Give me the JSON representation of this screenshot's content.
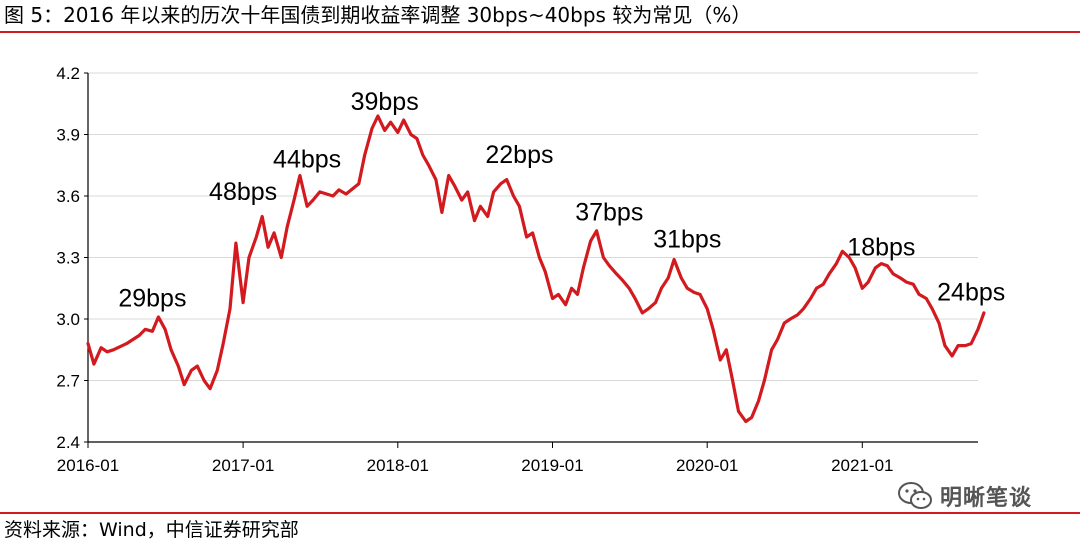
{
  "figure": {
    "title": "图 5：2016 年以来的历次十年国债到期收益率调整 30bps~40bps 较为常见（%）",
    "source": "资料来源：Wind，中信证券研究部",
    "watermark": "明晰笔谈",
    "watermark_icon": "wechat-icon"
  },
  "colors": {
    "line": "#d21a1f",
    "rule": "#d21a1f",
    "grid": "#d9d9d9",
    "axis": "#000000"
  },
  "chart_data": {
    "type": "line",
    "title": "",
    "xlabel": "",
    "ylabel": "",
    "ylim": [
      2.4,
      4.2
    ],
    "yticks": [
      "2.4",
      "2.7",
      "3.0",
      "3.3",
      "3.6",
      "3.9",
      "4.2"
    ],
    "xlim": [
      "2016-01",
      "2021-10"
    ],
    "xticks": [
      "2016-01",
      "2017-01",
      "2018-01",
      "2019-01",
      "2020-01",
      "2021-01"
    ],
    "grid": "horizontal",
    "legend": "none",
    "series": [
      {
        "points": [
          [
            "2016-01",
            2.88
          ],
          [
            "2016-01-15",
            2.78
          ],
          [
            "2016-02",
            2.86
          ],
          [
            "2016-02-15",
            2.84
          ],
          [
            "2016-03",
            2.85
          ],
          [
            "2016-04",
            2.88
          ],
          [
            "2016-05",
            2.92
          ],
          [
            "2016-05-15",
            2.95
          ],
          [
            "2016-06",
            2.94
          ],
          [
            "2016-06-15",
            3.01
          ],
          [
            "2016-07",
            2.95
          ],
          [
            "2016-07-15",
            2.85
          ],
          [
            "2016-08",
            2.77
          ],
          [
            "2016-08-15",
            2.68
          ],
          [
            "2016-09",
            2.75
          ],
          [
            "2016-09-15",
            2.77
          ],
          [
            "2016-10",
            2.7
          ],
          [
            "2016-10-15",
            2.66
          ],
          [
            "2016-11",
            2.75
          ],
          [
            "2016-11-15",
            2.88
          ],
          [
            "2016-12",
            3.05
          ],
          [
            "2016-12-15",
            3.37
          ],
          [
            "2017-01",
            3.08
          ],
          [
            "2017-01-15",
            3.3
          ],
          [
            "2017-02",
            3.4
          ],
          [
            "2017-02-15",
            3.5
          ],
          [
            "2017-03",
            3.35
          ],
          [
            "2017-03-15",
            3.42
          ],
          [
            "2017-04",
            3.3
          ],
          [
            "2017-04-15",
            3.45
          ],
          [
            "2017-05",
            3.58
          ],
          [
            "2017-05-15",
            3.7
          ],
          [
            "2017-06",
            3.55
          ],
          [
            "2017-06-15",
            3.58
          ],
          [
            "2017-07",
            3.62
          ],
          [
            "2017-08",
            3.6
          ],
          [
            "2017-08-15",
            3.63
          ],
          [
            "2017-09",
            3.61
          ],
          [
            "2017-10",
            3.66
          ],
          [
            "2017-10-15",
            3.8
          ],
          [
            "2017-11",
            3.93
          ],
          [
            "2017-11-15",
            3.99
          ],
          [
            "2017-12",
            3.92
          ],
          [
            "2017-12-15",
            3.96
          ],
          [
            "2018-01",
            3.91
          ],
          [
            "2018-01-15",
            3.97
          ],
          [
            "2018-02",
            3.9
          ],
          [
            "2018-02-15",
            3.88
          ],
          [
            "2018-03",
            3.8
          ],
          [
            "2018-03-15",
            3.75
          ],
          [
            "2018-04",
            3.68
          ],
          [
            "2018-04-15",
            3.52
          ],
          [
            "2018-05",
            3.7
          ],
          [
            "2018-05-15",
            3.65
          ],
          [
            "2018-06",
            3.58
          ],
          [
            "2018-06-15",
            3.62
          ],
          [
            "2018-07",
            3.48
          ],
          [
            "2018-07-15",
            3.55
          ],
          [
            "2018-08",
            3.5
          ],
          [
            "2018-08-15",
            3.62
          ],
          [
            "2018-09",
            3.66
          ],
          [
            "2018-09-15",
            3.68
          ],
          [
            "2018-10",
            3.6
          ],
          [
            "2018-10-15",
            3.55
          ],
          [
            "2018-11",
            3.4
          ],
          [
            "2018-11-15",
            3.42
          ],
          [
            "2018-12",
            3.3
          ],
          [
            "2018-12-15",
            3.23
          ],
          [
            "2019-01",
            3.1
          ],
          [
            "2019-01-15",
            3.12
          ],
          [
            "2019-02",
            3.07
          ],
          [
            "2019-02-15",
            3.15
          ],
          [
            "2019-03",
            3.12
          ],
          [
            "2019-03-15",
            3.25
          ],
          [
            "2019-04",
            3.38
          ],
          [
            "2019-04-15",
            3.43
          ],
          [
            "2019-05",
            3.3
          ],
          [
            "2019-05-15",
            3.26
          ],
          [
            "2019-06",
            3.22
          ],
          [
            "2019-06-15",
            3.19
          ],
          [
            "2019-07",
            3.15
          ],
          [
            "2019-07-15",
            3.1
          ],
          [
            "2019-08",
            3.03
          ],
          [
            "2019-08-15",
            3.05
          ],
          [
            "2019-09",
            3.08
          ],
          [
            "2019-09-15",
            3.15
          ],
          [
            "2019-10",
            3.2
          ],
          [
            "2019-10-15",
            3.29
          ],
          [
            "2019-11",
            3.2
          ],
          [
            "2019-11-15",
            3.15
          ],
          [
            "2019-12",
            3.13
          ],
          [
            "2019-12-15",
            3.12
          ],
          [
            "2020-01",
            3.05
          ],
          [
            "2020-01-15",
            2.95
          ],
          [
            "2020-02",
            2.8
          ],
          [
            "2020-02-15",
            2.85
          ],
          [
            "2020-03",
            2.7
          ],
          [
            "2020-03-15",
            2.55
          ],
          [
            "2020-04",
            2.5
          ],
          [
            "2020-04-15",
            2.52
          ],
          [
            "2020-05",
            2.6
          ],
          [
            "2020-05-15",
            2.7
          ],
          [
            "2020-06",
            2.85
          ],
          [
            "2020-06-15",
            2.9
          ],
          [
            "2020-07",
            2.98
          ],
          [
            "2020-07-15",
            3.0
          ],
          [
            "2020-08",
            3.02
          ],
          [
            "2020-08-15",
            3.05
          ],
          [
            "2020-09",
            3.1
          ],
          [
            "2020-09-15",
            3.15
          ],
          [
            "2020-10",
            3.17
          ],
          [
            "2020-10-15",
            3.22
          ],
          [
            "2020-11",
            3.27
          ],
          [
            "2020-11-15",
            3.33
          ],
          [
            "2020-12",
            3.3
          ],
          [
            "2020-12-15",
            3.25
          ],
          [
            "2021-01",
            3.15
          ],
          [
            "2021-01-15",
            3.18
          ],
          [
            "2021-02",
            3.25
          ],
          [
            "2021-02-15",
            3.27
          ],
          [
            "2021-03",
            3.26
          ],
          [
            "2021-03-15",
            3.22
          ],
          [
            "2021-04",
            3.2
          ],
          [
            "2021-04-15",
            3.18
          ],
          [
            "2021-05",
            3.17
          ],
          [
            "2021-05-15",
            3.12
          ],
          [
            "2021-06",
            3.1
          ],
          [
            "2021-06-15",
            3.05
          ],
          [
            "2021-07",
            2.98
          ],
          [
            "2021-07-15",
            2.87
          ],
          [
            "2021-08",
            2.82
          ],
          [
            "2021-08-15",
            2.87
          ],
          [
            "2021-09",
            2.87
          ],
          [
            "2021-09-15",
            2.88
          ],
          [
            "2021-10",
            2.95
          ],
          [
            "2021-10-15",
            3.03
          ]
        ]
      }
    ],
    "annotations": [
      {
        "text": "29bps",
        "x": "2016-06",
        "y": 3.06
      },
      {
        "text": "48bps",
        "x": "2017-01-01",
        "y": 3.58
      },
      {
        "text": "44bps",
        "x": "2017-06",
        "y": 3.74
      },
      {
        "text": "39bps",
        "x": "2017-12",
        "y": 4.02
      },
      {
        "text": "22bps",
        "x": "2018-10-15",
        "y": 3.76
      },
      {
        "text": "37bps",
        "x": "2019-05-15",
        "y": 3.48
      },
      {
        "text": "31bps",
        "x": "2019-11-15",
        "y": 3.35
      },
      {
        "text": "18bps",
        "x": "2021-02-15",
        "y": 3.31
      },
      {
        "text": "24bps",
        "x": "2021-09-15",
        "y": 3.09
      }
    ]
  }
}
